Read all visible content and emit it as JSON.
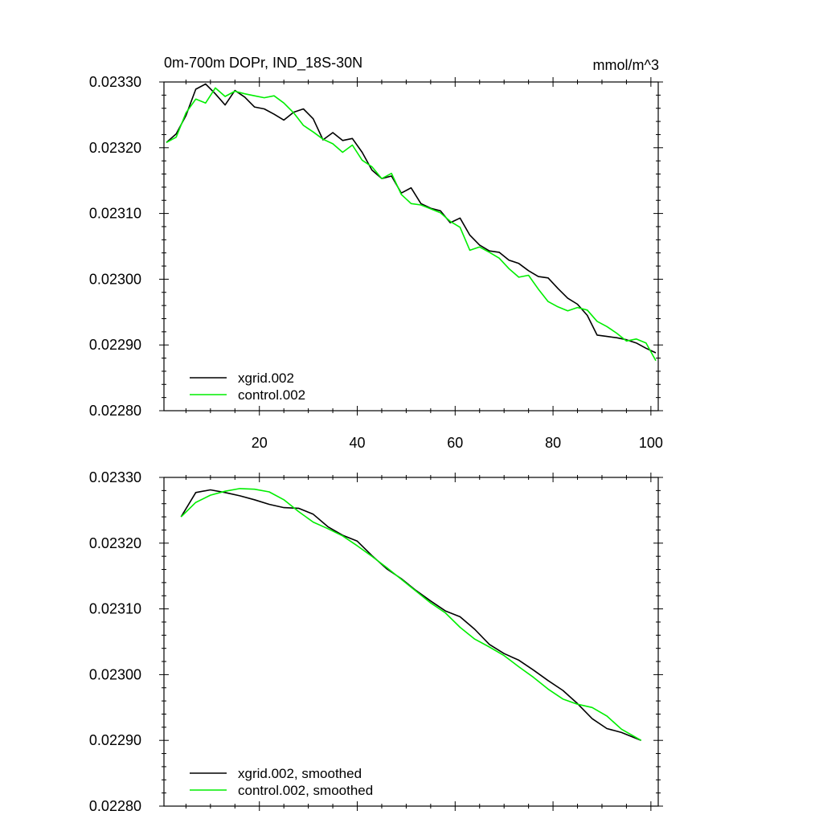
{
  "panels": [
    {
      "title_left": "0m-700m DOPr, IND_18S-30N",
      "title_right": "mmol/m^3"
    },
    {
      "title_left": "",
      "title_right": ""
    }
  ],
  "chart_data": [
    {
      "type": "line",
      "title": "0m-700m DOPr, IND_18S-30N",
      "units": "mmol/m^3",
      "xlim": [
        0.5,
        101.5
      ],
      "ylim": [
        0.0228,
        0.0233
      ],
      "x_ticks": [
        20,
        40,
        60,
        80,
        100
      ],
      "x_tick_labels": [
        "20",
        "40",
        "60",
        "80",
        "100"
      ],
      "y_ticks": [
        0.0228,
        0.0229,
        0.023,
        0.0231,
        0.0232,
        0.0233
      ],
      "y_tick_labels": [
        "0.02280",
        "0.02290",
        "0.02300",
        "0.02310",
        "0.02320",
        "0.02330"
      ],
      "legend_position": "bottom-left",
      "series": [
        {
          "name": "xgrid.002",
          "color": "#000000",
          "x": [
            1,
            3,
            5,
            7,
            9,
            11,
            13,
            15,
            17,
            19,
            21,
            23,
            25,
            27,
            29,
            31,
            33,
            35,
            37,
            39,
            41,
            43,
            45,
            47,
            49,
            51,
            53,
            55,
            57,
            59,
            61,
            63,
            65,
            67,
            69,
            71,
            73,
            75,
            77,
            79,
            81,
            83,
            85,
            87,
            89,
            91,
            93,
            95,
            97,
            99,
            101
          ],
          "values": [
            0.023208,
            0.023221,
            0.023249,
            0.023289,
            0.023297,
            0.023282,
            0.023265,
            0.023287,
            0.023277,
            0.023262,
            0.023259,
            0.023251,
            0.023242,
            0.023254,
            0.023259,
            0.023244,
            0.023212,
            0.023223,
            0.023211,
            0.023214,
            0.023193,
            0.023166,
            0.023153,
            0.023157,
            0.023131,
            0.023139,
            0.023115,
            0.023108,
            0.023104,
            0.023086,
            0.023093,
            0.023067,
            0.023052,
            0.023043,
            0.023041,
            0.023029,
            0.023024,
            0.023013,
            0.023004,
            0.023002,
            0.022986,
            0.022971,
            0.022962,
            0.022945,
            0.022915,
            0.022913,
            0.022911,
            0.022908,
            0.022903,
            0.022895,
            0.022888
          ]
        },
        {
          "name": "control.002",
          "color": "#00ee00",
          "x": [
            1,
            3,
            5,
            7,
            9,
            11,
            13,
            15,
            17,
            19,
            21,
            23,
            25,
            27,
            29,
            31,
            33,
            35,
            37,
            39,
            41,
            43,
            45,
            47,
            49,
            51,
            53,
            55,
            57,
            59,
            61,
            63,
            65,
            67,
            69,
            71,
            73,
            75,
            77,
            79,
            81,
            83,
            85,
            87,
            89,
            91,
            93,
            95,
            97,
            99,
            101
          ],
          "values": [
            0.023208,
            0.023216,
            0.023253,
            0.023274,
            0.023268,
            0.023291,
            0.023278,
            0.023286,
            0.023282,
            0.023279,
            0.023276,
            0.023279,
            0.023268,
            0.023253,
            0.023234,
            0.023224,
            0.023213,
            0.023206,
            0.023193,
            0.023204,
            0.023181,
            0.023171,
            0.023153,
            0.023161,
            0.023129,
            0.023115,
            0.023113,
            0.023107,
            0.023101,
            0.023088,
            0.023079,
            0.023044,
            0.023049,
            0.023041,
            0.023032,
            0.023016,
            0.023003,
            0.023006,
            0.022985,
            0.022966,
            0.022958,
            0.022952,
            0.022957,
            0.022953,
            0.022936,
            0.022928,
            0.022918,
            0.022906,
            0.022909,
            0.022903,
            0.022876
          ]
        }
      ]
    },
    {
      "type": "line",
      "title": "",
      "xlim": [
        0.5,
        101.5
      ],
      "ylim": [
        0.0228,
        0.0233
      ],
      "x_ticks": [
        20,
        40,
        60,
        80,
        100
      ],
      "x_tick_labels": [],
      "y_ticks": [
        0.0228,
        0.0229,
        0.023,
        0.0231,
        0.0232,
        0.0233
      ],
      "y_tick_labels": [
        "0.02280",
        "0.02290",
        "0.02300",
        "0.02310",
        "0.02320",
        "0.02330"
      ],
      "legend_position": "bottom-left",
      "series": [
        {
          "name": "xgrid.002, smoothed",
          "color": "#000000",
          "x": [
            4,
            7,
            10,
            13,
            16,
            19,
            22,
            25,
            28,
            31,
            34,
            37,
            40,
            43,
            46,
            49,
            52,
            55,
            58,
            61,
            64,
            67,
            70,
            73,
            76,
            79,
            82,
            85,
            88,
            91,
            94,
            98
          ],
          "values": [
            0.02324,
            0.023277,
            0.023281,
            0.023277,
            0.023272,
            0.023266,
            0.023259,
            0.023254,
            0.023253,
            0.023244,
            0.023225,
            0.023212,
            0.023203,
            0.023181,
            0.023161,
            0.023146,
            0.023128,
            0.023112,
            0.023097,
            0.023088,
            0.023069,
            0.023046,
            0.023032,
            0.023022,
            0.023007,
            0.022991,
            0.022976,
            0.022956,
            0.022933,
            0.022918,
            0.022912,
            0.0229
          ]
        },
        {
          "name": "control.002, smoothed",
          "color": "#00ee00",
          "x": [
            4,
            7,
            10,
            13,
            16,
            19,
            22,
            25,
            28,
            31,
            34,
            37,
            40,
            43,
            46,
            49,
            52,
            55,
            58,
            61,
            64,
            67,
            70,
            73,
            76,
            79,
            82,
            85,
            88,
            91,
            94,
            98
          ],
          "values": [
            0.02324,
            0.023262,
            0.023273,
            0.023279,
            0.023283,
            0.023282,
            0.023278,
            0.023266,
            0.023248,
            0.023232,
            0.023222,
            0.023211,
            0.023196,
            0.02318,
            0.023163,
            0.023145,
            0.023127,
            0.023109,
            0.023094,
            0.023072,
            0.023054,
            0.023042,
            0.023029,
            0.023012,
            0.022996,
            0.022978,
            0.022963,
            0.022955,
            0.02295,
            0.022937,
            0.022917,
            0.0229
          ]
        }
      ]
    }
  ]
}
